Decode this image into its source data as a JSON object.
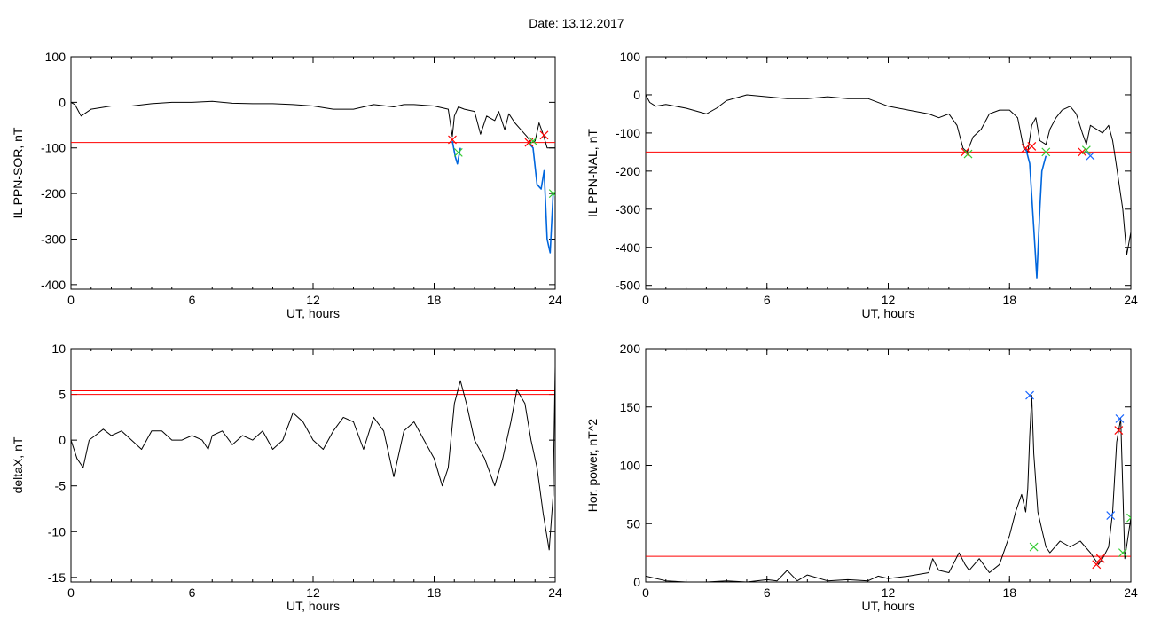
{
  "title": "Date:  13.12.2017",
  "colors": {
    "trace": "#000000",
    "threshold": "#ff0000",
    "segment": "#0066dd",
    "mark_red": "#ff0000",
    "mark_green": "#33cc33",
    "mark_blue": "#1a66ff"
  },
  "chart_data": [
    {
      "type": "line",
      "xlabel": "UT, hours",
      "ylabel": "IL PPN-SOR, nT",
      "xlim": [
        0,
        24
      ],
      "ylim": [
        -410,
        100
      ],
      "xticks": [
        0,
        6,
        12,
        18,
        24
      ],
      "yticks": [
        100,
        0,
        -100,
        -200,
        -300,
        -400
      ],
      "threshold": [
        -88
      ],
      "series": [
        {
          "style": "trace",
          "points": [
            [
              0,
              0
            ],
            [
              0.2,
              -5
            ],
            [
              0.5,
              -30
            ],
            [
              1,
              -15
            ],
            [
              2,
              -8
            ],
            [
              3,
              -8
            ],
            [
              4,
              -3
            ],
            [
              5,
              0
            ],
            [
              6,
              0
            ],
            [
              7,
              2
            ],
            [
              8,
              -2
            ],
            [
              9,
              -3
            ],
            [
              10,
              -3
            ],
            [
              11,
              -5
            ],
            [
              12,
              -8
            ],
            [
              13,
              -15
            ],
            [
              14,
              -15
            ],
            [
              15,
              -5
            ],
            [
              16,
              -10
            ],
            [
              16.5,
              -5
            ],
            [
              17,
              -5
            ],
            [
              18,
              -8
            ],
            [
              18.7,
              -15
            ],
            [
              18.9,
              -75
            ],
            [
              19.0,
              -30
            ],
            [
              19.2,
              -10
            ],
            [
              19.5,
              -15
            ],
            [
              20,
              -20
            ],
            [
              20.3,
              -70
            ],
            [
              20.6,
              -30
            ],
            [
              21,
              -40
            ],
            [
              21.2,
              -20
            ],
            [
              21.5,
              -60
            ],
            [
              21.7,
              -25
            ],
            [
              22,
              -45
            ],
            [
              22.3,
              -60
            ],
            [
              22.6,
              -75
            ],
            [
              22.8,
              -88
            ],
            [
              23.0,
              -85
            ],
            [
              23.2,
              -45
            ],
            [
              23.4,
              -70
            ],
            [
              23.6,
              -100
            ],
            [
              24,
              -100
            ]
          ]
        },
        {
          "style": "segment",
          "points": [
            [
              18.9,
              -85
            ],
            [
              19.05,
              -120
            ],
            [
              19.15,
              -135
            ],
            [
              19.3,
              -100
            ]
          ]
        },
        {
          "style": "segment",
          "points": [
            [
              22.7,
              -90
            ],
            [
              22.9,
              -100
            ],
            [
              23.1,
              -180
            ],
            [
              23.3,
              -190
            ],
            [
              23.45,
              -150
            ],
            [
              23.6,
              -300
            ],
            [
              23.75,
              -330
            ],
            [
              23.9,
              -200
            ]
          ]
        }
      ],
      "markers": [
        {
          "x": 18.9,
          "y": -82,
          "color": "red"
        },
        {
          "x": 19.2,
          "y": -110,
          "color": "green"
        },
        {
          "x": 22.7,
          "y": -88,
          "color": "red"
        },
        {
          "x": 22.9,
          "y": -85,
          "color": "green"
        },
        {
          "x": 23.45,
          "y": -72,
          "color": "red"
        },
        {
          "x": 23.9,
          "y": -200,
          "color": "green"
        }
      ]
    },
    {
      "type": "line",
      "xlabel": "UT, hours",
      "ylabel": "IL PPN-NAL, nT",
      "xlim": [
        0,
        24
      ],
      "ylim": [
        -510,
        100
      ],
      "xticks": [
        0,
        6,
        12,
        18,
        24
      ],
      "yticks": [
        100,
        0,
        -100,
        -200,
        -300,
        -400,
        -500
      ],
      "threshold": [
        -150
      ],
      "series": [
        {
          "style": "trace",
          "points": [
            [
              0,
              0
            ],
            [
              0.2,
              -20
            ],
            [
              0.5,
              -30
            ],
            [
              1,
              -25
            ],
            [
              2,
              -35
            ],
            [
              3,
              -50
            ],
            [
              3.5,
              -35
            ],
            [
              4,
              -15
            ],
            [
              5,
              0
            ],
            [
              6,
              -5
            ],
            [
              7,
              -10
            ],
            [
              8,
              -10
            ],
            [
              9,
              -5
            ],
            [
              10,
              -10
            ],
            [
              11,
              -10
            ],
            [
              12,
              -30
            ],
            [
              13,
              -40
            ],
            [
              14,
              -50
            ],
            [
              14.5,
              -60
            ],
            [
              15,
              -50
            ],
            [
              15.4,
              -80
            ],
            [
              15.7,
              -140
            ],
            [
              15.9,
              -150
            ],
            [
              16.2,
              -110
            ],
            [
              16.6,
              -90
            ],
            [
              17,
              -50
            ],
            [
              17.5,
              -40
            ],
            [
              18,
              -40
            ],
            [
              18.4,
              -60
            ],
            [
              18.7,
              -140
            ],
            [
              18.9,
              -150
            ],
            [
              19.1,
              -80
            ],
            [
              19.3,
              -60
            ],
            [
              19.5,
              -120
            ],
            [
              19.8,
              -130
            ],
            [
              20,
              -90
            ],
            [
              20.3,
              -60
            ],
            [
              20.6,
              -40
            ],
            [
              21,
              -30
            ],
            [
              21.3,
              -50
            ],
            [
              21.6,
              -100
            ],
            [
              21.8,
              -130
            ],
            [
              22,
              -80
            ],
            [
              22.3,
              -90
            ],
            [
              22.6,
              -100
            ],
            [
              22.9,
              -80
            ],
            [
              23.1,
              -120
            ],
            [
              23.3,
              -190
            ],
            [
              23.6,
              -300
            ],
            [
              23.8,
              -420
            ],
            [
              24,
              -360
            ]
          ]
        },
        {
          "style": "segment",
          "points": [
            [
              18.8,
              -140
            ],
            [
              19.0,
              -180
            ],
            [
              19.2,
              -350
            ],
            [
              19.35,
              -480
            ],
            [
              19.5,
              -300
            ],
            [
              19.6,
              -200
            ],
            [
              19.8,
              -160
            ]
          ]
        }
      ],
      "markers": [
        {
          "x": 15.8,
          "y": -150,
          "color": "red"
        },
        {
          "x": 15.95,
          "y": -155,
          "color": "green"
        },
        {
          "x": 18.8,
          "y": -140,
          "color": "red"
        },
        {
          "x": 19.1,
          "y": -135,
          "color": "red"
        },
        {
          "x": 19.8,
          "y": -150,
          "color": "green"
        },
        {
          "x": 21.6,
          "y": -150,
          "color": "red"
        },
        {
          "x": 21.8,
          "y": -145,
          "color": "green"
        },
        {
          "x": 22.0,
          "y": -160,
          "color": "blue"
        }
      ]
    },
    {
      "type": "line",
      "xlabel": "UT, hours",
      "ylabel": "deltaX, nT",
      "xlim": [
        0,
        24
      ],
      "ylim": [
        -15.5,
        10
      ],
      "xticks": [
        0,
        6,
        12,
        18,
        24
      ],
      "yticks": [
        10,
        5,
        0,
        -5,
        -10,
        -15
      ],
      "threshold": [
        5.4,
        5.0
      ],
      "series": [
        {
          "style": "trace",
          "points": [
            [
              0,
              0
            ],
            [
              0.3,
              -2
            ],
            [
              0.6,
              -3
            ],
            [
              0.9,
              0
            ],
            [
              1.2,
              0.5
            ],
            [
              1.6,
              1.2
            ],
            [
              2,
              0.5
            ],
            [
              2.5,
              1
            ],
            [
              3,
              0
            ],
            [
              3.5,
              -1
            ],
            [
              4,
              1
            ],
            [
              4.5,
              1
            ],
            [
              5,
              0
            ],
            [
              5.5,
              0
            ],
            [
              6,
              0.5
            ],
            [
              6.5,
              0
            ],
            [
              6.8,
              -1
            ],
            [
              7,
              0.5
            ],
            [
              7.5,
              1
            ],
            [
              8,
              -0.5
            ],
            [
              8.5,
              0.5
            ],
            [
              9,
              0
            ],
            [
              9.5,
              1
            ],
            [
              10,
              -1
            ],
            [
              10.5,
              0
            ],
            [
              11,
              3
            ],
            [
              11.5,
              2
            ],
            [
              12,
              0
            ],
            [
              12.5,
              -1
            ],
            [
              13,
              1
            ],
            [
              13.5,
              2.5
            ],
            [
              14,
              2
            ],
            [
              14.5,
              -1
            ],
            [
              15,
              2.5
            ],
            [
              15.5,
              1
            ],
            [
              16,
              -4
            ],
            [
              16.5,
              1
            ],
            [
              17,
              2
            ],
            [
              17.5,
              0
            ],
            [
              18,
              -2
            ],
            [
              18.4,
              -5
            ],
            [
              18.7,
              -3
            ],
            [
              19,
              4
            ],
            [
              19.3,
              6.5
            ],
            [
              19.6,
              4
            ],
            [
              20,
              0
            ],
            [
              20.5,
              -2
            ],
            [
              21,
              -5
            ],
            [
              21.4,
              -2
            ],
            [
              21.8,
              2
            ],
            [
              22.1,
              5.5
            ],
            [
              22.5,
              4
            ],
            [
              22.8,
              0
            ],
            [
              23.1,
              -3
            ],
            [
              23.4,
              -8
            ],
            [
              23.7,
              -12
            ],
            [
              23.9,
              -6
            ],
            [
              24,
              8
            ]
          ]
        }
      ],
      "markers": []
    },
    {
      "type": "line",
      "xlabel": "UT, hours",
      "ylabel": "Hor. power, nT^2",
      "xlim": [
        0,
        24
      ],
      "ylim": [
        0,
        200
      ],
      "xticks": [
        0,
        6,
        12,
        18,
        24
      ],
      "yticks": [
        200,
        150,
        100,
        50,
        0
      ],
      "threshold": [
        22
      ],
      "series": [
        {
          "style": "trace",
          "points": [
            [
              0,
              5
            ],
            [
              1,
              1
            ],
            [
              2,
              0
            ],
            [
              3,
              0
            ],
            [
              4,
              1
            ],
            [
              5,
              0
            ],
            [
              6,
              2
            ],
            [
              6.5,
              1
            ],
            [
              7,
              10
            ],
            [
              7.5,
              1
            ],
            [
              8,
              6
            ],
            [
              9,
              1
            ],
            [
              10,
              2
            ],
            [
              11,
              1
            ],
            [
              11.5,
              5
            ],
            [
              12,
              3
            ],
            [
              13,
              5
            ],
            [
              14,
              8
            ],
            [
              14.2,
              20
            ],
            [
              14.5,
              10
            ],
            [
              15,
              8
            ],
            [
              15.5,
              25
            ],
            [
              15.8,
              15
            ],
            [
              16,
              10
            ],
            [
              16.5,
              20
            ],
            [
              17,
              8
            ],
            [
              17.5,
              15
            ],
            [
              18,
              40
            ],
            [
              18.3,
              60
            ],
            [
              18.6,
              75
            ],
            [
              18.8,
              60
            ],
            [
              18.9,
              80
            ],
            [
              19.0,
              125
            ],
            [
              19.1,
              160
            ],
            [
              19.2,
              110
            ],
            [
              19.4,
              60
            ],
            [
              19.6,
              45
            ],
            [
              19.8,
              30
            ],
            [
              20,
              25
            ],
            [
              20.5,
              35
            ],
            [
              21,
              30
            ],
            [
              21.5,
              35
            ],
            [
              22,
              25
            ],
            [
              22.4,
              15
            ],
            [
              22.6,
              20
            ],
            [
              22.9,
              30
            ],
            [
              23.1,
              60
            ],
            [
              23.3,
              120
            ],
            [
              23.5,
              140
            ],
            [
              23.7,
              20
            ],
            [
              24,
              55
            ]
          ]
        }
      ],
      "markers": [
        {
          "x": 19.0,
          "y": 160,
          "color": "blue"
        },
        {
          "x": 19.2,
          "y": 30,
          "color": "green"
        },
        {
          "x": 22.3,
          "y": 15,
          "color": "red"
        },
        {
          "x": 22.5,
          "y": 20,
          "color": "red"
        },
        {
          "x": 23.0,
          "y": 57,
          "color": "blue"
        },
        {
          "x": 23.4,
          "y": 130,
          "color": "red"
        },
        {
          "x": 23.45,
          "y": 140,
          "color": "blue"
        },
        {
          "x": 23.6,
          "y": 25,
          "color": "green"
        },
        {
          "x": 24.0,
          "y": 55,
          "color": "green"
        }
      ]
    }
  ]
}
